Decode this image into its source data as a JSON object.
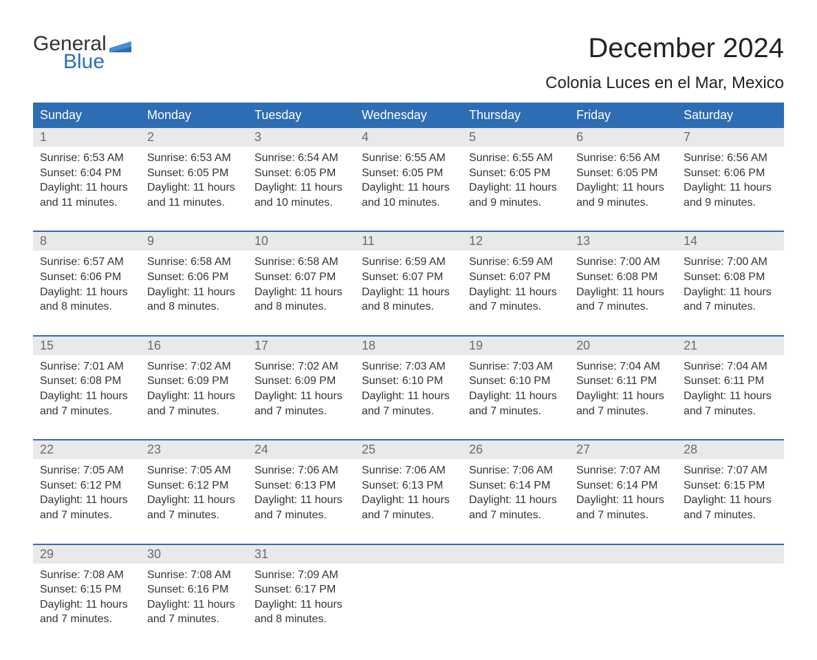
{
  "brand": {
    "word1": "General",
    "word2": "Blue"
  },
  "title": "December 2024",
  "location": "Colonia Luces en el Mar, Mexico",
  "colors": {
    "header_bg": "#2d6db3",
    "header_text": "#ffffff",
    "daynum_bg": "#e9e9e9",
    "daynum_text": "#6b6b6b",
    "body_text": "#333333",
    "rule": "#2d6db3",
    "brand_blue": "#2d6db3"
  },
  "fonts": {
    "family": "Arial, Helvetica, sans-serif",
    "title_size_pt": 30,
    "location_size_pt": 18,
    "dayheader_size_pt": 14,
    "daynum_size_pt": 14,
    "body_size_pt": 12
  },
  "calendar": {
    "type": "table",
    "columns": [
      "Sunday",
      "Monday",
      "Tuesday",
      "Wednesday",
      "Thursday",
      "Friday",
      "Saturday"
    ],
    "weeks": [
      [
        {
          "n": "1",
          "sunrise": "Sunrise: 6:53 AM",
          "sunset": "Sunset: 6:04 PM",
          "dl1": "Daylight: 11 hours",
          "dl2": "and 11 minutes."
        },
        {
          "n": "2",
          "sunrise": "Sunrise: 6:53 AM",
          "sunset": "Sunset: 6:05 PM",
          "dl1": "Daylight: 11 hours",
          "dl2": "and 11 minutes."
        },
        {
          "n": "3",
          "sunrise": "Sunrise: 6:54 AM",
          "sunset": "Sunset: 6:05 PM",
          "dl1": "Daylight: 11 hours",
          "dl2": "and 10 minutes."
        },
        {
          "n": "4",
          "sunrise": "Sunrise: 6:55 AM",
          "sunset": "Sunset: 6:05 PM",
          "dl1": "Daylight: 11 hours",
          "dl2": "and 10 minutes."
        },
        {
          "n": "5",
          "sunrise": "Sunrise: 6:55 AM",
          "sunset": "Sunset: 6:05 PM",
          "dl1": "Daylight: 11 hours",
          "dl2": "and 9 minutes."
        },
        {
          "n": "6",
          "sunrise": "Sunrise: 6:56 AM",
          "sunset": "Sunset: 6:05 PM",
          "dl1": "Daylight: 11 hours",
          "dl2": "and 9 minutes."
        },
        {
          "n": "7",
          "sunrise": "Sunrise: 6:56 AM",
          "sunset": "Sunset: 6:06 PM",
          "dl1": "Daylight: 11 hours",
          "dl2": "and 9 minutes."
        }
      ],
      [
        {
          "n": "8",
          "sunrise": "Sunrise: 6:57 AM",
          "sunset": "Sunset: 6:06 PM",
          "dl1": "Daylight: 11 hours",
          "dl2": "and 8 minutes."
        },
        {
          "n": "9",
          "sunrise": "Sunrise: 6:58 AM",
          "sunset": "Sunset: 6:06 PM",
          "dl1": "Daylight: 11 hours",
          "dl2": "and 8 minutes."
        },
        {
          "n": "10",
          "sunrise": "Sunrise: 6:58 AM",
          "sunset": "Sunset: 6:07 PM",
          "dl1": "Daylight: 11 hours",
          "dl2": "and 8 minutes."
        },
        {
          "n": "11",
          "sunrise": "Sunrise: 6:59 AM",
          "sunset": "Sunset: 6:07 PM",
          "dl1": "Daylight: 11 hours",
          "dl2": "and 8 minutes."
        },
        {
          "n": "12",
          "sunrise": "Sunrise: 6:59 AM",
          "sunset": "Sunset: 6:07 PM",
          "dl1": "Daylight: 11 hours",
          "dl2": "and 7 minutes."
        },
        {
          "n": "13",
          "sunrise": "Sunrise: 7:00 AM",
          "sunset": "Sunset: 6:08 PM",
          "dl1": "Daylight: 11 hours",
          "dl2": "and 7 minutes."
        },
        {
          "n": "14",
          "sunrise": "Sunrise: 7:00 AM",
          "sunset": "Sunset: 6:08 PM",
          "dl1": "Daylight: 11 hours",
          "dl2": "and 7 minutes."
        }
      ],
      [
        {
          "n": "15",
          "sunrise": "Sunrise: 7:01 AM",
          "sunset": "Sunset: 6:08 PM",
          "dl1": "Daylight: 11 hours",
          "dl2": "and 7 minutes."
        },
        {
          "n": "16",
          "sunrise": "Sunrise: 7:02 AM",
          "sunset": "Sunset: 6:09 PM",
          "dl1": "Daylight: 11 hours",
          "dl2": "and 7 minutes."
        },
        {
          "n": "17",
          "sunrise": "Sunrise: 7:02 AM",
          "sunset": "Sunset: 6:09 PM",
          "dl1": "Daylight: 11 hours",
          "dl2": "and 7 minutes."
        },
        {
          "n": "18",
          "sunrise": "Sunrise: 7:03 AM",
          "sunset": "Sunset: 6:10 PM",
          "dl1": "Daylight: 11 hours",
          "dl2": "and 7 minutes."
        },
        {
          "n": "19",
          "sunrise": "Sunrise: 7:03 AM",
          "sunset": "Sunset: 6:10 PM",
          "dl1": "Daylight: 11 hours",
          "dl2": "and 7 minutes."
        },
        {
          "n": "20",
          "sunrise": "Sunrise: 7:04 AM",
          "sunset": "Sunset: 6:11 PM",
          "dl1": "Daylight: 11 hours",
          "dl2": "and 7 minutes."
        },
        {
          "n": "21",
          "sunrise": "Sunrise: 7:04 AM",
          "sunset": "Sunset: 6:11 PM",
          "dl1": "Daylight: 11 hours",
          "dl2": "and 7 minutes."
        }
      ],
      [
        {
          "n": "22",
          "sunrise": "Sunrise: 7:05 AM",
          "sunset": "Sunset: 6:12 PM",
          "dl1": "Daylight: 11 hours",
          "dl2": "and 7 minutes."
        },
        {
          "n": "23",
          "sunrise": "Sunrise: 7:05 AM",
          "sunset": "Sunset: 6:12 PM",
          "dl1": "Daylight: 11 hours",
          "dl2": "and 7 minutes."
        },
        {
          "n": "24",
          "sunrise": "Sunrise: 7:06 AM",
          "sunset": "Sunset: 6:13 PM",
          "dl1": "Daylight: 11 hours",
          "dl2": "and 7 minutes."
        },
        {
          "n": "25",
          "sunrise": "Sunrise: 7:06 AM",
          "sunset": "Sunset: 6:13 PM",
          "dl1": "Daylight: 11 hours",
          "dl2": "and 7 minutes."
        },
        {
          "n": "26",
          "sunrise": "Sunrise: 7:06 AM",
          "sunset": "Sunset: 6:14 PM",
          "dl1": "Daylight: 11 hours",
          "dl2": "and 7 minutes."
        },
        {
          "n": "27",
          "sunrise": "Sunrise: 7:07 AM",
          "sunset": "Sunset: 6:14 PM",
          "dl1": "Daylight: 11 hours",
          "dl2": "and 7 minutes."
        },
        {
          "n": "28",
          "sunrise": "Sunrise: 7:07 AM",
          "sunset": "Sunset: 6:15 PM",
          "dl1": "Daylight: 11 hours",
          "dl2": "and 7 minutes."
        }
      ],
      [
        {
          "n": "29",
          "sunrise": "Sunrise: 7:08 AM",
          "sunset": "Sunset: 6:15 PM",
          "dl1": "Daylight: 11 hours",
          "dl2": "and 7 minutes."
        },
        {
          "n": "30",
          "sunrise": "Sunrise: 7:08 AM",
          "sunset": "Sunset: 6:16 PM",
          "dl1": "Daylight: 11 hours",
          "dl2": "and 7 minutes."
        },
        {
          "n": "31",
          "sunrise": "Sunrise: 7:09 AM",
          "sunset": "Sunset: 6:17 PM",
          "dl1": "Daylight: 11 hours",
          "dl2": "and 8 minutes."
        },
        null,
        null,
        null,
        null
      ]
    ]
  }
}
